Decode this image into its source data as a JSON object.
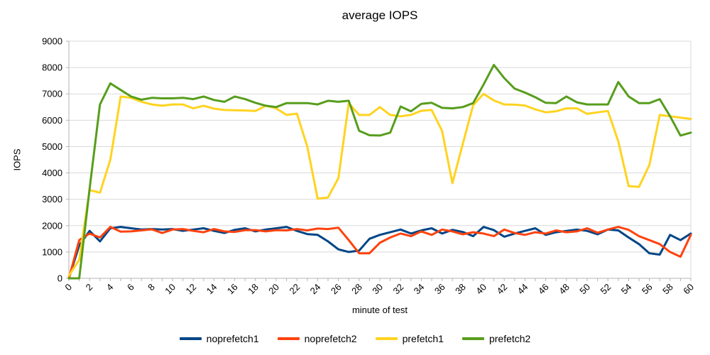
{
  "title": "average IOPS",
  "axes": {
    "y_title": "IOPS",
    "x_title": "minute of test",
    "y_tick_labels": [
      "0",
      "1000",
      "2000",
      "3000",
      "4000",
      "5000",
      "6000",
      "7000",
      "8000",
      "9000"
    ],
    "x_tick_labels": [
      "0",
      "2",
      "4",
      "6",
      "8",
      "10",
      "12",
      "14",
      "16",
      "18",
      "20",
      "22",
      "24",
      "26",
      "28",
      "30",
      "32",
      "34",
      "36",
      "38",
      "40",
      "42",
      "44",
      "46",
      "48",
      "50",
      "52",
      "54",
      "56",
      "58",
      "60"
    ]
  },
  "colors": {
    "grid": "#d9d9d9",
    "axis": "#b3b3b3",
    "text": "#000000",
    "background": "#ffffff"
  },
  "legend": {
    "entries": [
      "noprefetch1",
      "noprefetch2",
      "prefetch1",
      "prefetch2"
    ]
  },
  "chart_data": {
    "type": "line",
    "title": "average IOPS",
    "xlabel": "minute of test",
    "ylabel": "IOPS",
    "xlim": [
      0,
      60
    ],
    "ylim": [
      0,
      9000
    ],
    "grid": true,
    "legend_position": "bottom",
    "x": [
      0,
      1,
      2,
      3,
      4,
      5,
      6,
      7,
      8,
      9,
      10,
      11,
      12,
      13,
      14,
      15,
      16,
      17,
      18,
      19,
      20,
      21,
      22,
      23,
      24,
      25,
      26,
      27,
      28,
      29,
      30,
      31,
      32,
      33,
      34,
      35,
      36,
      37,
      38,
      39,
      40,
      41,
      42,
      43,
      44,
      45,
      46,
      47,
      48,
      49,
      50,
      51,
      52,
      53,
      54,
      55,
      56,
      57,
      58,
      59,
      60
    ],
    "series": [
      {
        "name": "noprefetch1",
        "color": "#004586",
        "values": [
          0,
          1250,
          1800,
          1400,
          1900,
          1950,
          1900,
          1850,
          1870,
          1850,
          1870,
          1800,
          1850,
          1900,
          1800,
          1720,
          1840,
          1900,
          1780,
          1850,
          1900,
          1950,
          1800,
          1680,
          1650,
          1400,
          1100,
          1000,
          1050,
          1500,
          1650,
          1750,
          1850,
          1700,
          1820,
          1900,
          1700,
          1840,
          1760,
          1600,
          1950,
          1830,
          1580,
          1700,
          1800,
          1900,
          1650,
          1750,
          1800,
          1850,
          1800,
          1670,
          1850,
          1820,
          1550,
          1300,
          950,
          900,
          1650,
          1450,
          1700
        ]
      },
      {
        "name": "noprefetch2",
        "color": "#FF420E",
        "values": [
          0,
          1450,
          1700,
          1550,
          1950,
          1770,
          1780,
          1820,
          1860,
          1720,
          1850,
          1870,
          1800,
          1750,
          1870,
          1780,
          1760,
          1830,
          1830,
          1780,
          1830,
          1820,
          1870,
          1820,
          1890,
          1870,
          1920,
          1450,
          950,
          950,
          1350,
          1550,
          1700,
          1600,
          1780,
          1650,
          1850,
          1780,
          1670,
          1750,
          1700,
          1600,
          1850,
          1720,
          1650,
          1750,
          1700,
          1820,
          1750,
          1780,
          1900,
          1730,
          1850,
          1950,
          1840,
          1600,
          1450,
          1300,
          1000,
          820,
          1650
        ]
      },
      {
        "name": "prefetch1",
        "color": "#FFD320",
        "values": [
          100,
          700,
          3350,
          3250,
          4500,
          6900,
          6850,
          6700,
          6600,
          6550,
          6600,
          6600,
          6450,
          6550,
          6440,
          6390,
          6380,
          6370,
          6350,
          6550,
          6450,
          6200,
          6250,
          5000,
          3020,
          3070,
          3800,
          6650,
          6200,
          6200,
          6500,
          6200,
          6150,
          6200,
          6360,
          6390,
          5600,
          3610,
          5100,
          6570,
          7000,
          6750,
          6600,
          6590,
          6560,
          6410,
          6300,
          6340,
          6450,
          6450,
          6240,
          6300,
          6350,
          5200,
          3500,
          3470,
          4300,
          6200,
          6150,
          6100,
          6050
        ]
      },
      {
        "name": "prefetch2",
        "color": "#579D1C",
        "values": [
          0,
          0,
          3400,
          6600,
          7400,
          7150,
          6900,
          6780,
          6850,
          6830,
          6830,
          6850,
          6800,
          6900,
          6770,
          6700,
          6900,
          6800,
          6660,
          6550,
          6500,
          6650,
          6650,
          6650,
          6600,
          6740,
          6700,
          6740,
          5600,
          5430,
          5420,
          5530,
          6520,
          6340,
          6620,
          6660,
          6470,
          6450,
          6500,
          6650,
          7350,
          8100,
          7600,
          7200,
          7050,
          6870,
          6660,
          6650,
          6900,
          6680,
          6600,
          6600,
          6600,
          7450,
          6900,
          6650,
          6650,
          6800,
          6150,
          5420,
          5530
        ]
      }
    ]
  }
}
